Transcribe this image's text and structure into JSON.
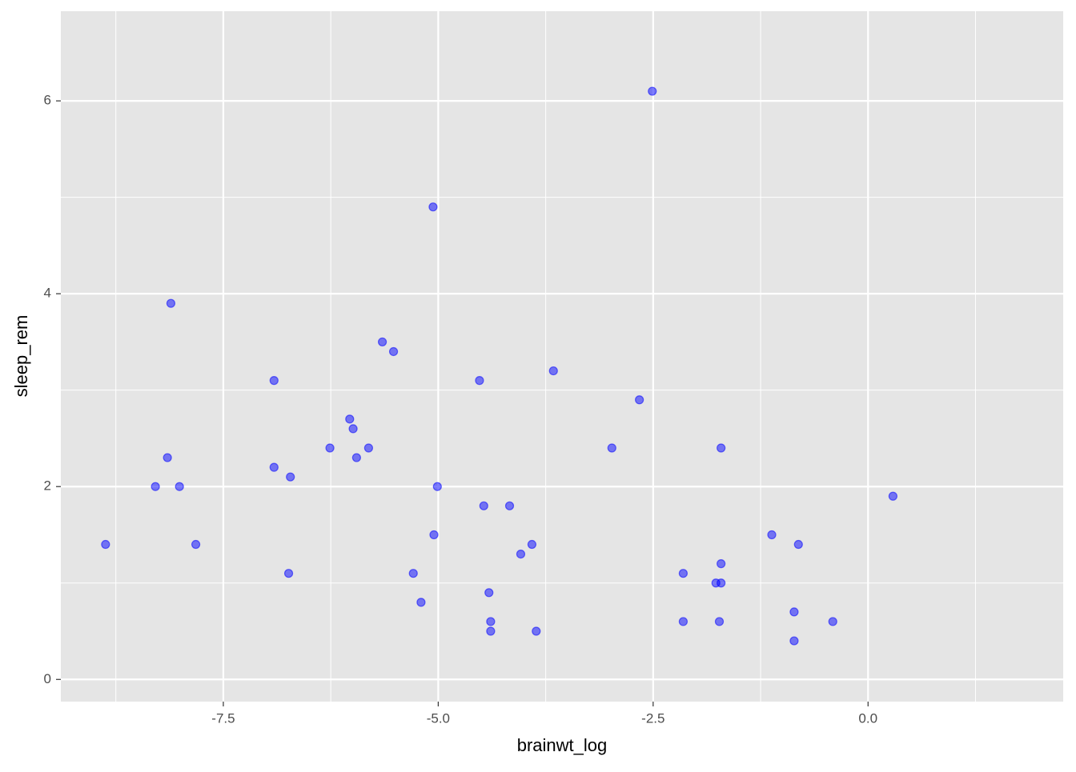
{
  "chart_data": {
    "type": "scatter",
    "x_label": "brainwt_log",
    "y_label": "sleep_rem",
    "x": [
      -8.87,
      -8.29,
      -8.15,
      -8.11,
      -8.01,
      -7.82,
      -6.91,
      -6.91,
      -6.74,
      -6.72,
      -6.26,
      -6.03,
      -5.99,
      -5.95,
      -5.81,
      -5.65,
      -5.52,
      -5.29,
      -5.2,
      -5.06,
      -5.05,
      -5.01,
      -4.52,
      -4.47,
      -4.41,
      -4.39,
      -4.39,
      -4.17,
      -4.04,
      -3.91,
      -3.86,
      -3.66,
      -2.98,
      -2.66,
      -2.51,
      -2.15,
      -2.15,
      -1.77,
      -1.73,
      -1.71,
      -1.71,
      -1.71,
      -1.12,
      -0.86,
      -0.86,
      -0.81,
      -0.41,
      0.29
    ],
    "values": [
      1.4,
      2.0,
      2.3,
      3.9,
      2.0,
      1.4,
      3.1,
      2.2,
      1.1,
      2.1,
      2.4,
      2.7,
      2.6,
      2.3,
      2.4,
      3.5,
      3.4,
      1.1,
      0.8,
      4.9,
      1.5,
      2.0,
      3.1,
      1.8,
      0.9,
      0.6,
      0.5,
      1.8,
      1.3,
      1.4,
      0.5,
      3.2,
      2.4,
      2.9,
      6.1,
      1.1,
      0.6,
      1.0,
      0.6,
      1.2,
      1.0,
      2.4,
      1.5,
      0.7,
      0.4,
      1.4,
      0.6,
      1.9
    ],
    "color": "#0000ff",
    "xlim": [
      -9.39,
      2.27
    ],
    "ylim": [
      -0.23,
      6.93
    ],
    "xticks": [
      {
        "value": -7.5,
        "label": "-7.5"
      },
      {
        "value": -5,
        "label": "-5.0"
      },
      {
        "value": -2.5,
        "label": "-2.5"
      },
      {
        "value": 0,
        "label": "0.0"
      }
    ],
    "yticks": [
      0,
      2,
      4,
      6
    ],
    "x_minor_grid": [
      -8.75,
      -6.25,
      -3.75,
      -1.25,
      1.25
    ],
    "y_minor_grid": [
      1,
      3,
      5
    ],
    "grid": true
  }
}
